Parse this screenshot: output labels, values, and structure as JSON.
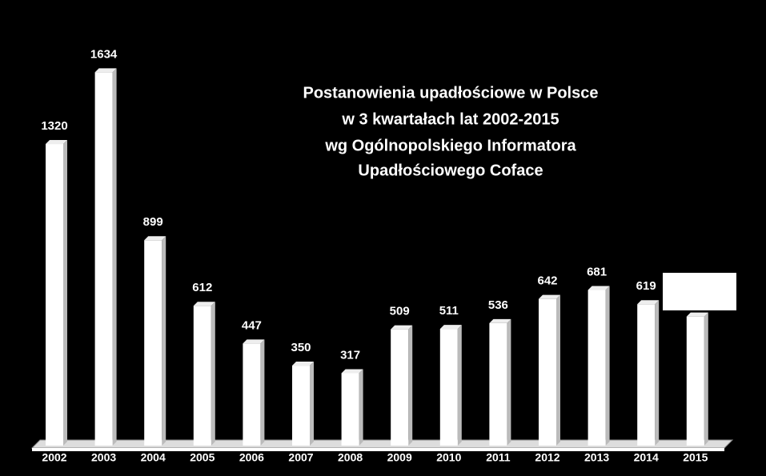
{
  "chart_data": {
    "type": "bar",
    "title": [
      "Postanowienia upadłościowe w Polsce",
      "w 3 kwartałach lat 2002-2015",
      "wg Ogólnopolskiego Informatora",
      "Upadłościowego Coface"
    ],
    "categories": [
      "2002",
      "2003",
      "2004",
      "2005",
      "2006",
      "2007",
      "2008",
      "2009",
      "2010",
      "2011",
      "2012",
      "2013",
      "2014",
      "2015"
    ],
    "values": [
      1320,
      1634,
      899,
      612,
      447,
      350,
      317,
      509,
      511,
      536,
      642,
      681,
      619,
      565
    ],
    "value_labels": [
      "1320",
      "1634",
      "899",
      "612",
      "447",
      "350",
      "317",
      "509",
      "511",
      "536",
      "642",
      "681",
      "619",
      null
    ],
    "color": "#ffffff",
    "ylim": [
      0,
      1700
    ]
  }
}
